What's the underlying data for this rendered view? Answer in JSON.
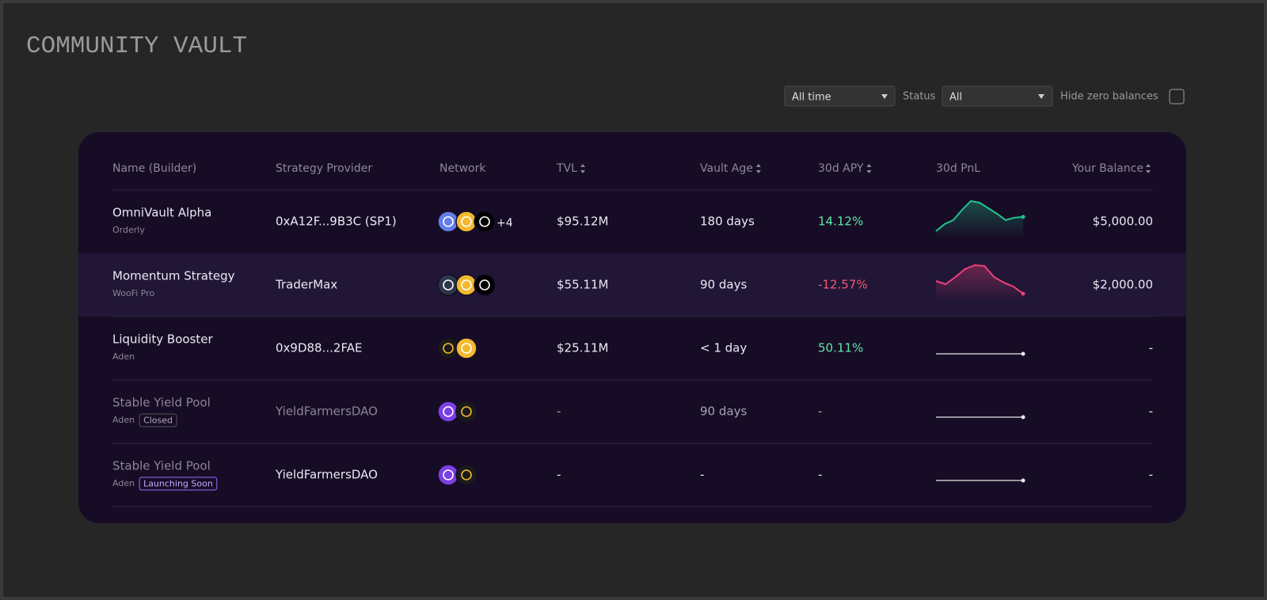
{
  "header": {
    "title": "COMMUNITY VAULT"
  },
  "filters": {
    "period": "All time",
    "status_label": "Status",
    "status": "All",
    "hide_zero": "Hide zero balances"
  },
  "table": {
    "columns": [
      "Name (Builder)",
      "Strategy Provider",
      "Network",
      "TVL",
      "Vault Age",
      "30d APY",
      "30d PnL",
      "Your Balance"
    ],
    "rows": [
      {
        "name": "OmniVault Alpha",
        "builder": "Orderly",
        "provider": "0xA12F...9B3C (SP1)",
        "networks": [
          "#627eea",
          "#f3ba2f",
          "#000000"
        ],
        "network_extra": "+4",
        "tvl": "$95.12M",
        "age": "180 days",
        "apy": "14.12%",
        "apy_color": "#5ee8a8",
        "pnl": [
          8,
          17,
          22,
          35,
          46,
          44,
          37,
          30,
          22,
          25,
          26
        ],
        "pnl_color": "#1fc48a",
        "balance": "$5,000.00"
      },
      {
        "name": "Momentum Strategy",
        "builder": "WooFi Pro",
        "provider": "TraderMax",
        "networks": [
          "#2d374b",
          "#f3ba2f",
          "#000000"
        ],
        "tvl": "$55.11M",
        "age": "90 days",
        "apy": "-12.57%",
        "apy_color": "#f0587a",
        "pnl": [
          25,
          21,
          30,
          40,
          45,
          44,
          30,
          23,
          18,
          9
        ],
        "pnl_color": "#f0407a",
        "balance": "$2,000.00"
      },
      {
        "name": "Liquidity Booster",
        "builder": "Aden",
        "provider": "0x9D88...2FAE",
        "networks": [
          "#1a1a1a",
          "#f3ba2f"
        ],
        "tvl": "$25.11M",
        "age": "< 1 day",
        "apy": "50.11%",
        "apy_color": "#5ee8a8",
        "pnl": [
          13,
          13
        ],
        "pnl_color": "#e8e8e8",
        "balance": "-"
      },
      {
        "name": "Stable Yield Pool",
        "builder": "Aden",
        "tag": "Closed",
        "provider": "YieldFarmersDAO",
        "networks": [
          "#7b3fe4",
          "#1a1a1a"
        ],
        "tvl": "-",
        "age": "90 days",
        "apy": "-",
        "pnl": [
          13,
          13
        ],
        "pnl_color": "#e8e8e8",
        "balance": "-"
      },
      {
        "name": "Stable Yield Pool",
        "builder": "Aden",
        "tag": "Launching Soon",
        "provider": "YieldFarmersDAO",
        "networks": [
          "#7b3fe4",
          "#1a1a1a"
        ],
        "tvl": "-",
        "age": "-",
        "apy": "-",
        "pnl": [
          13,
          13
        ],
        "pnl_color": "#e8e8e8",
        "balance": "-"
      }
    ]
  }
}
